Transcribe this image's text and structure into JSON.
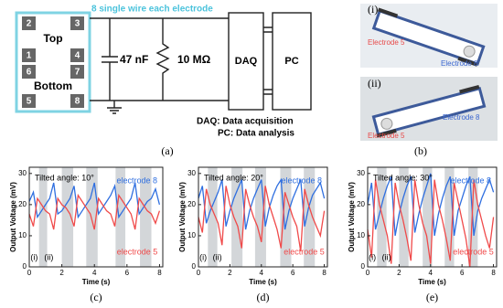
{
  "diagram": {
    "pads": [
      "2",
      "3",
      "1",
      "4",
      "6",
      "7",
      "5",
      "8"
    ],
    "top_label": "Top",
    "bottom_label": "Bottom",
    "wire_note": "8 single wire each electrode",
    "capacitor": "47 nF",
    "resistor": "10 MΩ",
    "daq": "DAQ",
    "pc": "PC",
    "legend": [
      "DAQ: Data acquisition",
      "PC: Data analysis"
    ],
    "caption_a": "(a)",
    "panel_b": {
      "items": [
        {
          "label": "(i)",
          "electrode_left": "Electrode 5",
          "electrode_right": "Electrode 8"
        },
        {
          "label": "(ii)",
          "electrode_left": "Electrode 5",
          "electrode_right": "Electrode 8"
        }
      ],
      "caption": "(b)"
    }
  },
  "chart_data": [
    {
      "type": "line",
      "annotation": "Tilted angle: 10°",
      "caption": "(c)",
      "xlabel": "Time (s)",
      "ylabel": "Output Voltage (mV)",
      "xlim": [
        0,
        8.2
      ],
      "ylim": [
        0,
        32
      ],
      "xticks": [
        0,
        2,
        4,
        6,
        8
      ],
      "yticks": [
        0,
        10,
        20,
        30
      ],
      "phase_labels": [
        "(i)",
        "(ii)"
      ],
      "shaded": [
        [
          0.6,
          1.1
        ],
        [
          2.0,
          2.7
        ],
        [
          3.5,
          4.2
        ],
        [
          5.3,
          5.9
        ],
        [
          6.8,
          7.5
        ]
      ],
      "x": [
        0,
        0.25,
        0.5,
        0.75,
        1,
        1.25,
        1.5,
        1.75,
        2,
        2.25,
        2.5,
        2.75,
        3,
        3.25,
        3.5,
        3.75,
        4,
        4.25,
        4.5,
        4.75,
        5,
        5.25,
        5.5,
        5.75,
        6,
        6.25,
        6.5,
        6.75,
        7,
        7.25,
        7.5,
        7.75,
        8
      ],
      "series": [
        {
          "name": "electrode 8",
          "color": "#2f6fe0",
          "values": [
            21,
            24,
            16,
            18,
            20,
            22,
            27,
            17,
            18,
            20,
            22,
            26,
            16,
            18,
            20,
            22,
            27,
            17,
            19,
            21,
            23,
            26,
            16,
            18,
            20,
            22,
            27,
            17,
            19,
            21,
            22,
            25,
            20
          ]
        },
        {
          "name": "electrode 5",
          "color": "#f04a4a",
          "values": [
            17,
            13,
            22,
            20,
            18,
            17,
            12,
            22,
            20,
            19,
            17,
            13,
            23,
            21,
            19,
            17,
            12,
            22,
            20,
            18,
            17,
            13,
            23,
            21,
            19,
            17,
            12,
            22,
            20,
            18,
            17,
            14,
            18
          ]
        }
      ]
    },
    {
      "type": "line",
      "annotation": "Tilted angle: 20°",
      "caption": "(d)",
      "xlabel": "Time (s)",
      "ylabel": "Output Voltage (mV)",
      "xlim": [
        0,
        8.2
      ],
      "ylim": [
        0,
        32
      ],
      "xticks": [
        0,
        2,
        4,
        6,
        8
      ],
      "yticks": [
        0,
        10,
        20,
        30
      ],
      "phase_labels": [
        "(i)",
        "(ii)"
      ],
      "shaded": [
        [
          0.6,
          1.2
        ],
        [
          2.1,
          2.8
        ],
        [
          3.6,
          4.3
        ],
        [
          5.2,
          5.9
        ],
        [
          6.7,
          7.4
        ]
      ],
      "x": [
        0,
        0.25,
        0.5,
        0.75,
        1,
        1.25,
        1.5,
        1.75,
        2,
        2.25,
        2.5,
        2.75,
        3,
        3.25,
        3.5,
        3.75,
        4,
        4.25,
        4.5,
        4.75,
        5,
        5.25,
        5.5,
        5.75,
        6,
        6.25,
        6.5,
        6.75,
        7,
        7.25,
        7.5,
        7.75,
        8
      ],
      "series": [
        {
          "name": "electrode 8",
          "color": "#2f6fe0",
          "values": [
            22,
            26,
            14,
            18,
            21,
            24,
            28,
            13,
            18,
            22,
            25,
            28,
            12,
            18,
            22,
            25,
            28,
            13,
            19,
            23,
            26,
            28,
            12,
            18,
            22,
            25,
            28,
            13,
            19,
            23,
            25,
            27,
            22
          ]
        },
        {
          "name": "electrode 5",
          "color": "#f04a4a",
          "values": [
            16,
            11,
            25,
            20,
            17,
            14,
            7,
            26,
            20,
            16,
            13,
            6,
            25,
            20,
            16,
            13,
            8,
            26,
            20,
            16,
            12,
            6,
            24,
            20,
            16,
            13,
            5,
            25,
            20,
            16,
            13,
            10,
            18
          ]
        }
      ]
    },
    {
      "type": "line",
      "annotation": "Tilted angle: 30°",
      "caption": "(e)",
      "xlabel": "Time (s)",
      "ylabel": "Output Voltage (mV)",
      "xlim": [
        0,
        8.2
      ],
      "ylim": [
        0,
        32
      ],
      "xticks": [
        0,
        2,
        4,
        6,
        8
      ],
      "yticks": [
        0,
        10,
        20,
        30
      ],
      "phase_labels": [
        "(i)",
        "(ii)"
      ],
      "shaded": [
        [
          0.6,
          1.2
        ],
        [
          2.0,
          2.6
        ],
        [
          3.5,
          4.1
        ],
        [
          4.9,
          5.5
        ],
        [
          6.4,
          7.0
        ]
      ],
      "x": [
        0,
        0.25,
        0.5,
        0.75,
        1,
        1.25,
        1.5,
        1.75,
        2,
        2.25,
        2.5,
        2.75,
        3,
        3.25,
        3.5,
        3.75,
        4,
        4.25,
        4.5,
        4.75,
        5,
        5.25,
        5.5,
        5.75,
        6,
        6.25,
        6.5,
        6.75,
        7,
        7.25,
        7.5,
        7.75,
        8
      ],
      "series": [
        {
          "name": "electrode 8",
          "color": "#2f6fe0",
          "values": [
            20,
            27,
            12,
            17,
            22,
            26,
            29,
            10,
            17,
            22,
            26,
            29,
            11,
            17,
            22,
            26,
            30,
            10,
            17,
            22,
            26,
            29,
            10,
            18,
            22,
            26,
            29,
            10,
            18,
            22,
            25,
            28,
            24
          ]
        },
        {
          "name": "electrode 5",
          "color": "#f04a4a",
          "values": [
            12,
            3,
            28,
            20,
            15,
            10,
            1,
            27,
            20,
            15,
            9,
            2,
            28,
            20,
            14,
            10,
            1,
            28,
            20,
            15,
            9,
            2,
            27,
            21,
            15,
            9,
            0,
            28,
            20,
            15,
            10,
            6,
            16
          ]
        }
      ]
    }
  ]
}
